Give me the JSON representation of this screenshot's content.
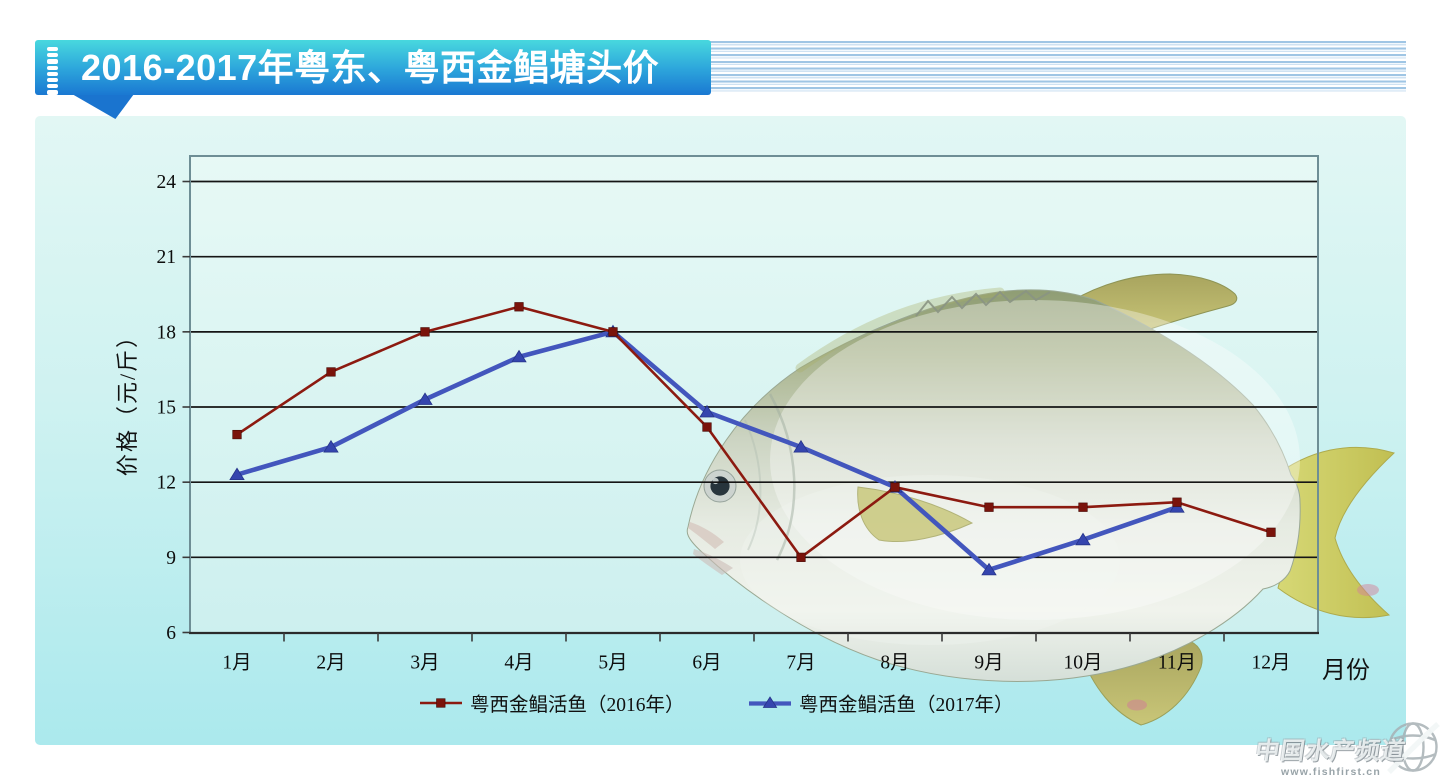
{
  "header": {
    "title": "2016-2017年粤东、粤西金鲳塘头价"
  },
  "watermark": {
    "name": "中国水产频道",
    "url": "www.fishfirst.cn"
  },
  "chart_data": {
    "type": "line",
    "title": "2016-2017年粤东、粤西金鲳塘头价",
    "categories": [
      "1月",
      "2月",
      "3月",
      "4月",
      "5月",
      "6月",
      "7月",
      "8月",
      "9月",
      "10月",
      "11月",
      "12月"
    ],
    "series": [
      {
        "name": "粤西金鲳活鱼（2016年）",
        "color": "#8c1a10",
        "marker": "square",
        "marker_color": "#7a130b",
        "values": [
          13.9,
          16.4,
          18.0,
          19.0,
          18.0,
          14.2,
          9.0,
          11.8,
          11.0,
          11.0,
          11.2,
          10.0
        ]
      },
      {
        "name": "粤西金鲳活鱼（2017年）",
        "color": "#4356bd",
        "marker": "triangle",
        "marker_color": "#3545ae",
        "values": [
          12.3,
          13.4,
          15.3,
          17.0,
          18.0,
          14.8,
          13.4,
          11.8,
          8.5,
          9.7,
          11.0,
          null
        ]
      }
    ],
    "xlabel": "月份",
    "ylabel": "价格（元/斤）",
    "ylim": [
      6,
      25
    ],
    "yticks": [
      6,
      9,
      12,
      15,
      18,
      21,
      24
    ],
    "grid": true,
    "legend_position": "bottom"
  }
}
